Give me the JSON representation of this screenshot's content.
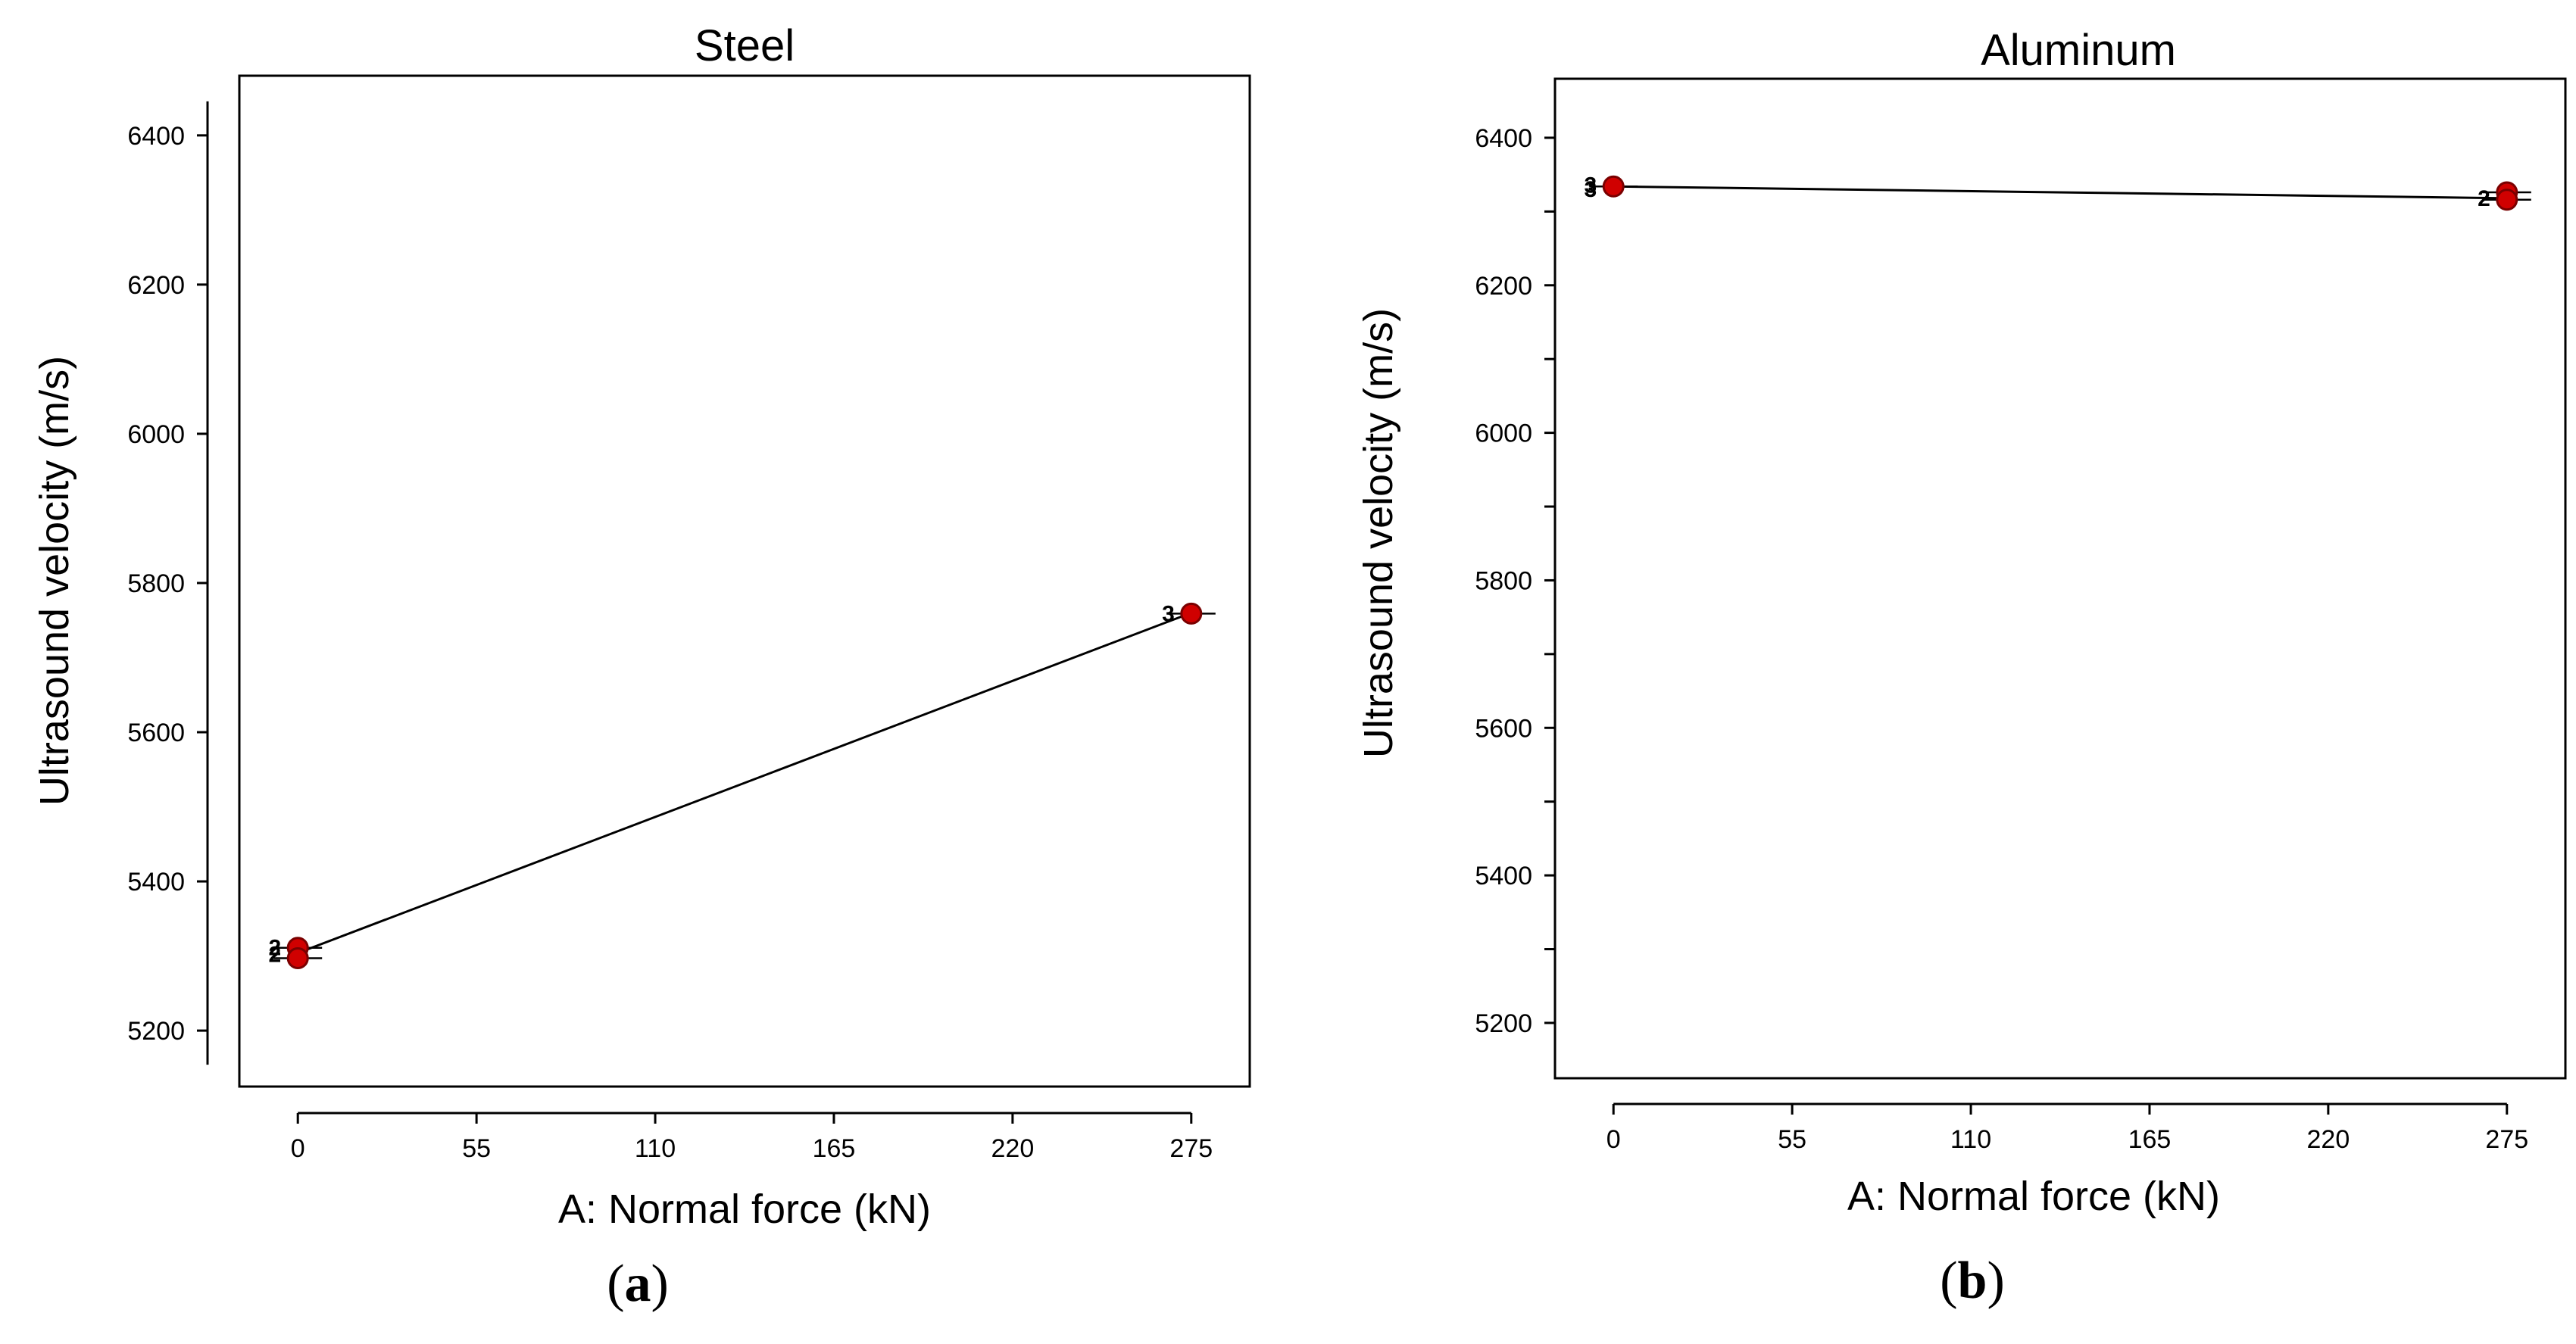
{
  "chart_data": [
    {
      "type": "line",
      "title": "Steel",
      "xlabel": "A: Normal force (kN)",
      "ylabel": "Ultrasound velocity (m/s)",
      "panel_label": {
        "open": "(",
        "letter": "a",
        "close": ")"
      },
      "x_ticks": [
        0,
        55,
        110,
        165,
        220,
        275
      ],
      "y_ticks": [
        5200,
        5400,
        5600,
        5800,
        6000,
        6200,
        6400
      ],
      "xlim": [
        -18,
        293
      ],
      "ylim": [
        5125,
        6480
      ],
      "fit_line": {
        "x": [
          0,
          275
        ],
        "y": [
          5304,
          5760
        ]
      },
      "points": [
        {
          "x": 0,
          "y": 5311
        },
        {
          "x": 0,
          "y": 5297
        },
        {
          "x": 275,
          "y": 5759
        }
      ],
      "point_labels": [
        {
          "x": 0,
          "y": 5311,
          "text": "2"
        },
        {
          "x": 0,
          "y": 5302,
          "text": "2"
        },
        {
          "x": 275,
          "y": 5759,
          "text": "3"
        }
      ],
      "colors": {
        "marker_fill": "#d00000",
        "marker_stroke": "#7a0000",
        "line": "#000000"
      }
    },
    {
      "type": "line",
      "title": "Aluminum",
      "xlabel": "A: Normal force (kN)",
      "ylabel": "Ultrasound velocity (m/s)",
      "panel_label": {
        "open": "(",
        "letter": "b",
        "close": ")"
      },
      "x_ticks": [
        0,
        55,
        110,
        165,
        220,
        275
      ],
      "y_ticks": [
        5200,
        5300,
        5400,
        5500,
        5600,
        5700,
        5800,
        5900,
        6000,
        6100,
        6200,
        6300,
        6400
      ],
      "y_tick_labels": [
        5200,
        5400,
        5600,
        5800,
        6000,
        6200,
        6400
      ],
      "xlim": [
        -18,
        293
      ],
      "ylim": [
        5125,
        6480
      ],
      "fit_line": {
        "x": [
          0,
          275
        ],
        "y": [
          6334,
          6318
        ]
      },
      "points": [
        {
          "x": 0,
          "y": 6334
        },
        {
          "x": 275,
          "y": 6326
        },
        {
          "x": 275,
          "y": 6316
        }
      ],
      "point_labels": [
        {
          "x": 0,
          "y": 6336,
          "text": "3"
        },
        {
          "x": 0,
          "y": 6330,
          "text": "3"
        },
        {
          "x": 275,
          "y": 6318,
          "text": "2"
        }
      ],
      "colors": {
        "marker_fill": "#d00000",
        "marker_stroke": "#7a0000",
        "line": "#000000"
      }
    }
  ]
}
